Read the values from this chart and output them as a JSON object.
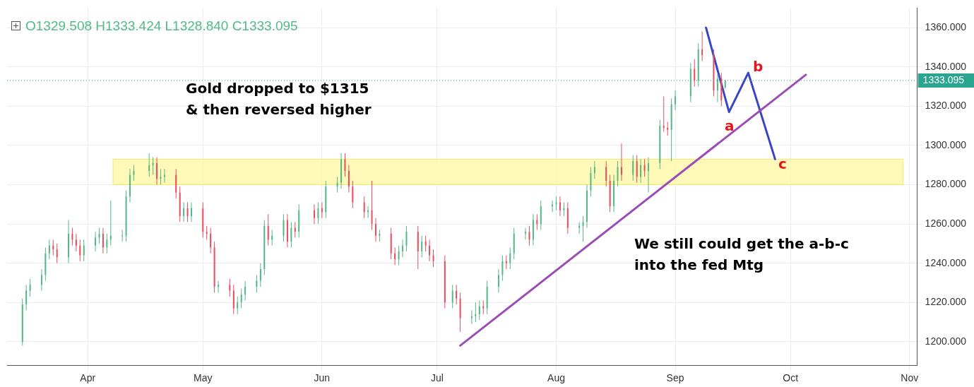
{
  "chart_data": {
    "type": "candlestick",
    "annotations": [
      "O1329.508 H1333.424 L1328.840 C1333.095",
      "Gold dropped to $1315\n& then reversed higher",
      "We still could get the a-b-c\ninto the fed Mtg",
      "a",
      "b",
      "c"
    ],
    "colors": [
      "#53b987",
      "#53b987",
      "#53b987",
      "#53b987",
      "#53b987",
      "#53b987",
      "#eb4d5c",
      "#eb4d5c",
      "#53b987",
      "#eb4d5c",
      "#eb4d5c",
      "#eb4d5c",
      "#53b987",
      "#53b987",
      "#53b987",
      "#eb4d5c",
      "#53b987",
      "#53b987",
      "#53b987",
      "#53b987",
      "#53b987",
      "#53b987",
      "#53b987",
      "#53b987",
      "#eb4d5c",
      "#53b987",
      "#53b987",
      "#eb4d5c",
      "#eb4d5c",
      "#53b987",
      "#eb4d5c",
      "#53b987",
      "#eb4d5c",
      "#eb4d5c",
      "#eb4d5c",
      "#eb4d5c",
      "#53b987",
      "#eb4d5c",
      "#eb4d5c",
      "#53b987",
      "#53b987",
      "#53b987",
      "#53b987",
      "#53b987",
      "#53b987",
      "#eb4d5c",
      "#53b987",
      "#53b987",
      "#eb4d5c",
      "#53b987",
      "#eb4d5c",
      "#53b987",
      "#eb4d5c",
      "#53b987",
      "#eb4d5c",
      "#53b987",
      "#53b987",
      "#53b987",
      "#eb4d5c",
      "#eb4d5c",
      "#eb4d5c",
      "#eb4d5c",
      "#53b987",
      "#eb4d5c",
      "#eb4d5c",
      "#53b987",
      "#eb4d5c",
      "#eb4d5c",
      "#53b987",
      "#53b987",
      "#53b987",
      "#eb4d5c",
      "#53b987",
      "#eb4d5c",
      "#eb4d5c",
      "#eb4d5c",
      "#eb4d5c",
      "#53b987",
      "#eb4d5c",
      "#eb4d5c",
      "#53b987",
      "#53b987",
      "#53b987",
      "#eb4d5c",
      "#53b987",
      "#53b987",
      "#53b987",
      "#eb4d5c",
      "#53b987",
      "#53b987",
      "#53b987",
      "#eb4d5c",
      "#53b987",
      "#eb4d5c",
      "#53b987",
      "#53b987",
      "#53b987",
      "#eb4d5c",
      "#53b987",
      "#eb4d5c",
      "#53b987",
      "#53b987",
      "#53b987",
      "#53b987",
      "#53b987",
      "#eb4d5c",
      "#eb4d5c",
      "#53b987",
      "#53b987",
      "#eb4d5c",
      "#53b987",
      "#eb4d5c",
      "#53b987",
      "#eb4d5c",
      "#53b987",
      "#53b987",
      "#eb4d5c",
      "#eb4d5c",
      "#53b987",
      "#53b987",
      "#53b987",
      "#eb4d5c",
      "#53b987",
      "#eb4d5c",
      "#eb4d5c",
      "#53b987",
      "#eb4d5c",
      "#53b987"
    ],
    "x": [
      "--03-15",
      "--03-16",
      "--03-17",
      "--03-20",
      "--03-21",
      "--03-22",
      "--03-23",
      "--03-24",
      "--03-27",
      "--03-28",
      "--03-29",
      "--03-30",
      "--03-31",
      "--04-03",
      "--04-04",
      "--04-05",
      "--04-06",
      "--04-07",
      "--04-10",
      "--04-11",
      "--04-12",
      "--04-13",
      "--04-17",
      "--04-18",
      "--04-19",
      "--04-20",
      "--04-21",
      "--04-24",
      "--04-25",
      "--04-26",
      "--04-27",
      "--04-28",
      "--05-01",
      "--05-02",
      "--05-03",
      "--05-04",
      "--05-05",
      "--05-08",
      "--05-09",
      "--05-10",
      "--05-11",
      "--05-12",
      "--05-15",
      "--05-16",
      "--05-17",
      "--05-18",
      "--05-19",
      "--05-22",
      "--05-23",
      "--05-24",
      "--05-25",
      "--05-26",
      "--05-30",
      "--05-31",
      "--06-01",
      "--06-02",
      "--06-05",
      "--06-06",
      "--06-07",
      "--06-08",
      "--06-09",
      "--06-12",
      "--06-13",
      "--06-14",
      "--06-15",
      "--06-16",
      "--06-19",
      "--06-20",
      "--06-21",
      "--06-22",
      "--06-23",
      "--06-26",
      "--06-27",
      "--06-28",
      "--06-29",
      "--06-30",
      "--07-03",
      "--07-05",
      "--07-06",
      "--07-07",
      "--07-10",
      "--07-11",
      "--07-12",
      "--07-13",
      "--07-14",
      "--07-17",
      "--07-18",
      "--07-19",
      "--07-20",
      "--07-21",
      "--07-24",
      "--07-25",
      "--07-26",
      "--07-27",
      "--07-28",
      "--07-31",
      "--08-01",
      "--08-02",
      "--08-03",
      "--08-04",
      "--08-07",
      "--08-08",
      "--08-09",
      "--08-10",
      "--08-11",
      "--08-14",
      "--08-15",
      "--08-16",
      "--08-17",
      "--08-18",
      "--08-21",
      "--08-22",
      "--08-23",
      "--08-24",
      "--08-25",
      "--08-28",
      "--08-29",
      "--08-30",
      "--08-31",
      "--09-01",
      "--09-05",
      "--09-06",
      "--09-07",
      "--09-08",
      "--09-11",
      "--09-12",
      "--09-13",
      "--09-14"
    ],
    "ohlc": [
      [
        1200,
        1222,
        1198,
        1219
      ],
      [
        1219,
        1229,
        1216,
        1226
      ],
      [
        1226,
        1232,
        1223,
        1229
      ],
      [
        1229,
        1237,
        1226,
        1234
      ],
      [
        1234,
        1248,
        1231,
        1245
      ],
      [
        1245,
        1252,
        1242,
        1249
      ],
      [
        1249,
        1252,
        1244,
        1247
      ],
      [
        1247,
        1250,
        1240,
        1243
      ],
      [
        1243,
        1262,
        1240,
        1255
      ],
      [
        1255,
        1258,
        1249,
        1252
      ],
      [
        1252,
        1255,
        1246,
        1249
      ],
      [
        1249,
        1252,
        1241,
        1244
      ],
      [
        1244,
        1252,
        1241,
        1249
      ],
      [
        1249,
        1256,
        1246,
        1253
      ],
      [
        1253,
        1258,
        1250,
        1255
      ],
      [
        1255,
        1258,
        1245,
        1248
      ],
      [
        1248,
        1255,
        1245,
        1252
      ],
      [
        1252,
        1272,
        1249,
        1254
      ],
      [
        1254,
        1257,
        1251,
        1254
      ],
      [
        1254,
        1277,
        1251,
        1274
      ],
      [
        1274,
        1288,
        1271,
        1285
      ],
      [
        1285,
        1290,
        1282,
        1287
      ],
      [
        1287,
        1296,
        1284,
        1290
      ],
      [
        1290,
        1294,
        1285,
        1291
      ],
      [
        1291,
        1294,
        1280,
        1283
      ],
      [
        1283,
        1288,
        1280,
        1284
      ],
      [
        1284,
        1288,
        1281,
        1285
      ],
      [
        1285,
        1288,
        1273,
        1276
      ],
      [
        1276,
        1279,
        1261,
        1264
      ],
      [
        1264,
        1271,
        1261,
        1268
      ],
      [
        1268,
        1271,
        1261,
        1264
      ],
      [
        1264,
        1271,
        1261,
        1268
      ],
      [
        1268,
        1271,
        1253,
        1256
      ],
      [
        1256,
        1259,
        1252,
        1255
      ],
      [
        1255,
        1258,
        1245,
        1248
      ],
      [
        1248,
        1251,
        1225,
        1228
      ],
      [
        1228,
        1231,
        1225,
        1229
      ],
      [
        1229,
        1232,
        1223,
        1226
      ],
      [
        1226,
        1229,
        1214,
        1217
      ],
      [
        1217,
        1223,
        1214,
        1220
      ],
      [
        1220,
        1227,
        1217,
        1224
      ],
      [
        1224,
        1231,
        1221,
        1228
      ],
      [
        1228,
        1234,
        1225,
        1231
      ],
      [
        1231,
        1240,
        1228,
        1237
      ],
      [
        1237,
        1262,
        1234,
        1259
      ],
      [
        1259,
        1265,
        1249,
        1252
      ],
      [
        1252,
        1257,
        1249,
        1254
      ],
      [
        1254,
        1265,
        1251,
        1262
      ],
      [
        1262,
        1265,
        1248,
        1251
      ],
      [
        1251,
        1261,
        1248,
        1258
      ],
      [
        1258,
        1261,
        1253,
        1256
      ],
      [
        1256,
        1270,
        1253,
        1267
      ],
      [
        1267,
        1270,
        1260,
        1263
      ],
      [
        1263,
        1271,
        1260,
        1268
      ],
      [
        1268,
        1271,
        1263,
        1266
      ],
      [
        1266,
        1282,
        1263,
        1279
      ],
      [
        1279,
        1284,
        1276,
        1281
      ],
      [
        1281,
        1296,
        1278,
        1293
      ],
      [
        1293,
        1296,
        1284,
        1287
      ],
      [
        1287,
        1290,
        1276,
        1279
      ],
      [
        1279,
        1282,
        1268,
        1271
      ],
      [
        1271,
        1274,
        1263,
        1266
      ],
      [
        1266,
        1269,
        1263,
        1267
      ],
      [
        1267,
        1282,
        1257,
        1260
      ],
      [
        1260,
        1263,
        1251,
        1254
      ],
      [
        1254,
        1257,
        1251,
        1255
      ],
      [
        1255,
        1258,
        1242,
        1245
      ],
      [
        1245,
        1248,
        1239,
        1242
      ],
      [
        1242,
        1249,
        1239,
        1246
      ],
      [
        1246,
        1252,
        1243,
        1249
      ],
      [
        1249,
        1259,
        1246,
        1256
      ],
      [
        1256,
        1259,
        1237,
        1246
      ],
      [
        1246,
        1254,
        1243,
        1251
      ],
      [
        1251,
        1254,
        1246,
        1249
      ],
      [
        1249,
        1252,
        1241,
        1244
      ],
      [
        1244,
        1247,
        1238,
        1241
      ],
      [
        1241,
        1244,
        1217,
        1220
      ],
      [
        1220,
        1229,
        1217,
        1226
      ],
      [
        1226,
        1229,
        1219,
        1222
      ],
      [
        1222,
        1225,
        1205,
        1212
      ],
      [
        1212,
        1216,
        1209,
        1213
      ],
      [
        1213,
        1220,
        1210,
        1214
      ],
      [
        1214,
        1221,
        1211,
        1218
      ],
      [
        1218,
        1221,
        1214,
        1217
      ],
      [
        1217,
        1231,
        1214,
        1228
      ],
      [
        1228,
        1237,
        1225,
        1234
      ],
      [
        1234,
        1244,
        1231,
        1241
      ],
      [
        1241,
        1244,
        1237,
        1240
      ],
      [
        1240,
        1248,
        1237,
        1245
      ],
      [
        1245,
        1258,
        1242,
        1255
      ],
      [
        1255,
        1258,
        1252,
        1256
      ],
      [
        1256,
        1259,
        1249,
        1252
      ],
      [
        1252,
        1265,
        1249,
        1262
      ],
      [
        1262,
        1265,
        1257,
        1260
      ],
      [
        1260,
        1272,
        1257,
        1269
      ],
      [
        1269,
        1272,
        1266,
        1270
      ],
      [
        1270,
        1274,
        1267,
        1271
      ],
      [
        1271,
        1274,
        1264,
        1267
      ],
      [
        1267,
        1271,
        1264,
        1268
      ],
      [
        1268,
        1271,
        1255,
        1258
      ],
      [
        1258,
        1261,
        1255,
        1259
      ],
      [
        1259,
        1264,
        1251,
        1261
      ],
      [
        1261,
        1280,
        1258,
        1277
      ],
      [
        1277,
        1289,
        1274,
        1286
      ],
      [
        1286,
        1292,
        1283,
        1289
      ],
      [
        1289,
        1292,
        1279,
        1282
      ],
      [
        1282,
        1285,
        1266,
        1269
      ],
      [
        1269,
        1285,
        1266,
        1282
      ],
      [
        1282,
        1292,
        1279,
        1289
      ],
      [
        1289,
        1301,
        1282,
        1285
      ],
      [
        1285,
        1295,
        1282,
        1292
      ],
      [
        1292,
        1295,
        1281,
        1284
      ],
      [
        1284,
        1293,
        1281,
        1290
      ],
      [
        1290,
        1293,
        1284,
        1287
      ],
      [
        1287,
        1294,
        1276,
        1291
      ],
      [
        1291,
        1313,
        1288,
        1310
      ],
      [
        1310,
        1325,
        1307,
        1309
      ],
      [
        1309,
        1312,
        1305,
        1308
      ],
      [
        1308,
        1324,
        1292,
        1321
      ],
      [
        1321,
        1328,
        1318,
        1325
      ],
      [
        1325,
        1342,
        1322,
        1339
      ],
      [
        1339,
        1344,
        1330,
        1333
      ],
      [
        1333,
        1352,
        1330,
        1349
      ],
      [
        1349,
        1358,
        1343,
        1346
      ],
      [
        1346,
        1349,
        1325,
        1328
      ],
      [
        1328,
        1336,
        1322,
        1334
      ],
      [
        1334,
        1337,
        1320,
        1323
      ],
      [
        1329.508,
        1333.424,
        1328.84,
        1333.095
      ]
    ],
    "series": [
      {
        "type": "line",
        "color": "#9b4db5",
        "x": [
          "--07-07",
          "--10-05"
        ],
        "values": [
          1198,
          1336
        ]
      },
      {
        "type": "line",
        "color": "#3a44c6",
        "x": [
          "--09-09",
          "--09-15",
          "--09-20",
          "--09-27"
        ],
        "values": [
          1360,
          1317,
          1337,
          1293
        ]
      }
    ],
    "xlim": [
      "--03-11",
      "--11-03"
    ],
    "xticks": [
      {
        "value": "--04-01",
        "label": "Apr"
      },
      {
        "value": "--05-01",
        "label": "May"
      },
      {
        "value": "--06-01",
        "label": "Jun"
      },
      {
        "value": "--07-01",
        "label": "Jul"
      },
      {
        "value": "--08-01",
        "label": "Aug"
      },
      {
        "value": "--09-01",
        "label": "Sep"
      },
      {
        "value": "--10-01",
        "label": "Oct"
      },
      {
        "value": "--11-01",
        "label": "Nov"
      }
    ],
    "ylim": [
      1188,
      1370
    ],
    "yticks": [
      {
        "value": 1200,
        "label": "1200.000"
      },
      {
        "value": 1220,
        "label": "1220.000"
      },
      {
        "value": 1240,
        "label": "1240.000"
      },
      {
        "value": 1260,
        "label": "1260.000"
      },
      {
        "value": 1280,
        "label": "1280.000"
      },
      {
        "value": 1300,
        "label": "1300.000"
      },
      {
        "value": 1320,
        "label": "1320.000"
      },
      {
        "value": 1340,
        "label": "1340.000"
      },
      {
        "value": 1360,
        "label": "1360.000"
      }
    ],
    "ref_lines": [
      {
        "axis": "y",
        "value": 1333.095,
        "label": "1333.095",
        "color": "#2aa58f",
        "line_style": "dotted"
      }
    ],
    "bands": [
      {
        "axis": "y",
        "from": 1280,
        "to": 1293,
        "color": "#fff7a8"
      }
    ],
    "grid": true,
    "legend": false
  }
}
